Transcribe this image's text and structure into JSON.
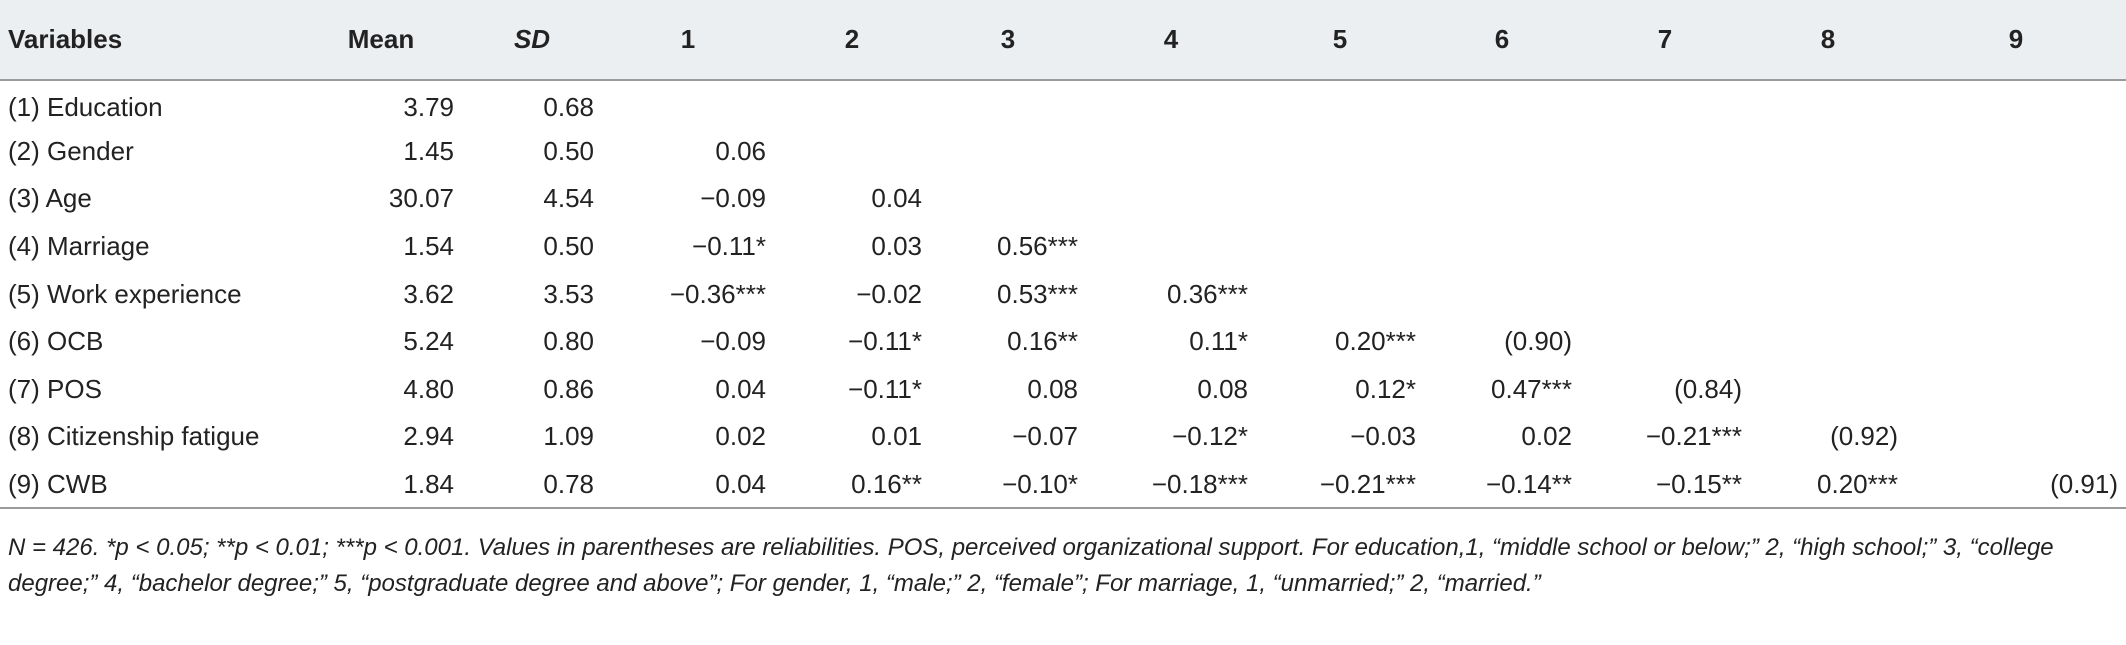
{
  "table": {
    "headers": [
      "Variables",
      "Mean",
      "SD",
      "1",
      "2",
      "3",
      "4",
      "5",
      "6",
      "7",
      "8",
      "9"
    ],
    "rows": [
      [
        "(1) Education",
        "3.79",
        "0.68",
        "",
        "",
        "",
        "",
        "",
        "",
        "",
        "",
        ""
      ],
      [
        "(2) Gender",
        "1.45",
        "0.50",
        "0.06",
        "",
        "",
        "",
        "",
        "",
        "",
        "",
        ""
      ],
      [
        "(3) Age",
        "30.07",
        "4.54",
        "−0.09",
        "0.04",
        "",
        "",
        "",
        "",
        "",
        "",
        ""
      ],
      [
        "(4) Marriage",
        "1.54",
        "0.50",
        "−0.11*",
        "0.03",
        "0.56***",
        "",
        "",
        "",
        "",
        "",
        ""
      ],
      [
        "(5) Work experience",
        "3.62",
        "3.53",
        "−0.36***",
        "−0.02",
        "0.53***",
        "0.36***",
        "",
        "",
        "",
        "",
        ""
      ],
      [
        "(6) OCB",
        "5.24",
        "0.80",
        "−0.09",
        "−0.11*",
        "0.16**",
        "0.11*",
        "0.20***",
        "(0.90)",
        "",
        "",
        ""
      ],
      [
        "(7) POS",
        "4.80",
        "0.86",
        "0.04",
        "−0.11*",
        "0.08",
        "0.08",
        "0.12*",
        "0.47***",
        "(0.84)",
        "",
        ""
      ],
      [
        "(8) Citizenship fatigue",
        "2.94",
        "1.09",
        "0.02",
        "0.01",
        "−0.07",
        "−0.12*",
        "−0.03",
        "0.02",
        "−0.21***",
        "(0.92)",
        ""
      ],
      [
        "(9) CWB",
        "1.84",
        "0.78",
        "0.04",
        "0.16**",
        "−0.10*",
        "−0.18***",
        "−0.21***",
        "−0.14**",
        "−0.15**",
        "0.20***",
        "(0.91)"
      ]
    ]
  },
  "note": "N = 426. *p < 0.05; **p < 0.01; ***p < 0.001. Values in parentheses are reliabilities. POS, perceived organizational support. For education,1, “middle school or below;” 2, “high school;” 3, “college degree;” 4, “bachelor degree;” 5, “postgraduate degree and above”; For gender, 1, “male;” 2, “female”; For marriage, 1, “unmarried;” 2, “married.”"
}
